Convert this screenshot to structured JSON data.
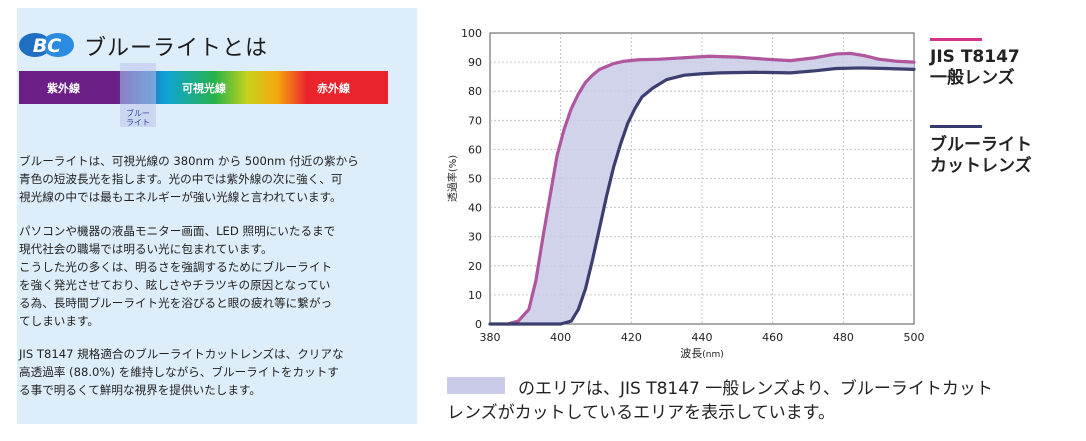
{
  "left": {
    "logo_text": "BC",
    "heading": "ブルーライトとは",
    "spectrum": {
      "uv_label": "紫外線",
      "visible_label": "可視光線",
      "ir_label": "赤外線",
      "blue_caption": "ブルー\nライト"
    },
    "para1": [
      "ブルーライトは、可視光線の 380nm から 500nm 付近の紫から",
      "青色の短波長光を指します。光の中では紫外線の次に強く、可",
      "視光線の中では最もエネルギーが強い光線と言われています。"
    ],
    "para2": [
      "パソコンや機器の液晶モニター画面、LED 照明にいたるまで",
      "現代社会の職場では明るい光に包まれています。",
      "こうした光の多くは、明るさを強調するためにブルーライト",
      "を強く発光させており、眩しさやチラツキの原因となってい",
      "る為、長時間ブルーライト光を浴びると眼の疲れ等に繋がっ",
      "てしまいます。"
    ],
    "para3": [
      "JIS T8147 規格適合のブルーライトカットレンズは、クリアな",
      "高透過率 (88.0%) を維持しながら、ブルーライトをカットす",
      "る事で明るくて鮮明な視界を提供いたします。"
    ]
  },
  "chart_data": {
    "type": "line",
    "xlabel": "波長",
    "xunit": "(nm)",
    "ylabel": "透過率(%)",
    "xlim": [
      380,
      500
    ],
    "ylim": [
      0,
      100
    ],
    "xticks": [
      380,
      400,
      420,
      440,
      460,
      480,
      500
    ],
    "yticks": [
      0,
      10,
      20,
      30,
      40,
      50,
      60,
      70,
      80,
      90,
      100
    ],
    "grid": true,
    "legend_position": "right",
    "series": [
      {
        "name": "JIS T8147 一般レンズ",
        "color": "#b0569e",
        "x": [
          385,
          388,
          391,
          393,
          395,
          397,
          399,
          401,
          403,
          405,
          407,
          409,
          411,
          413,
          415,
          418,
          422,
          428,
          435,
          442,
          450,
          458,
          465,
          472,
          478,
          482,
          486,
          490,
          495,
          500
        ],
        "y": [
          0,
          1,
          5,
          15,
          30,
          44,
          58,
          67,
          74,
          79,
          83,
          85.5,
          87.5,
          88.5,
          89.5,
          90.3,
          90.8,
          91,
          91.5,
          92,
          91.7,
          91,
          90.5,
          91.5,
          92.8,
          93,
          92.2,
          91,
          90.3,
          90
        ]
      },
      {
        "name": "ブルーライトカットレンズ",
        "color": "#3b3e6e",
        "x": [
          380,
          395,
          400,
          403,
          405,
          407,
          409,
          411,
          413,
          415,
          417,
          419,
          421,
          423,
          426,
          430,
          435,
          440,
          445,
          455,
          465,
          472,
          478,
          485,
          492,
          500
        ],
        "y": [
          0,
          0,
          0,
          1,
          5,
          12,
          22,
          33,
          44,
          54,
          62,
          69,
          74,
          78,
          81,
          84,
          85.5,
          86,
          86.3,
          86.5,
          86.3,
          87,
          87.8,
          88,
          87.8,
          87.5
        ]
      }
    ],
    "fill_between": {
      "color": "#c9cbe8"
    }
  },
  "legend": {
    "general_line1": "JIS T8147",
    "general_line2": "一般レンズ",
    "cut_line1": "ブルーライト",
    "cut_line2": "カットレンズ"
  },
  "footnote": {
    "line1": "のエリアは、JIS T8147 一般レンズより、ブルーライトカット",
    "line2": "レンズがカットしているエリアを表示しています。"
  }
}
